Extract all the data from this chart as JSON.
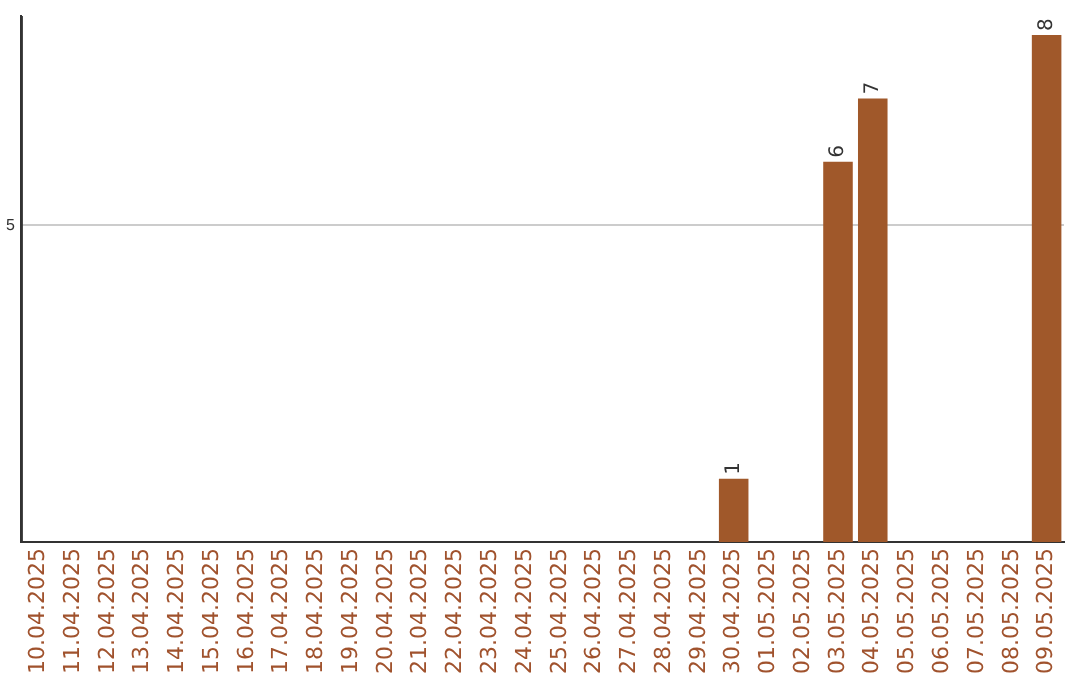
{
  "chart_data": {
    "type": "bar",
    "categories": [
      "10.04.2025",
      "11.04.2025",
      "12.04.2025",
      "13.04.2025",
      "14.04.2025",
      "15.04.2025",
      "16.04.2025",
      "17.04.2025",
      "18.04.2025",
      "19.04.2025",
      "20.04.2025",
      "21.04.2025",
      "22.04.2025",
      "23.04.2025",
      "24.04.2025",
      "25.04.2025",
      "26.04.2025",
      "27.04.2025",
      "28.04.2025",
      "29.04.2025",
      "30.04.2025",
      "01.05.2025",
      "02.05.2025",
      "03.05.2025",
      "04.05.2025",
      "05.05.2025",
      "06.05.2025",
      "07.05.2025",
      "08.05.2025",
      "09.05.2025"
    ],
    "values": [
      null,
      null,
      null,
      null,
      null,
      null,
      null,
      null,
      null,
      null,
      null,
      null,
      null,
      null,
      null,
      null,
      null,
      null,
      null,
      null,
      1,
      null,
      null,
      6,
      7,
      null,
      null,
      null,
      null,
      8
    ],
    "data_labels": true,
    "color": "#a0582a",
    "ylim": [
      0,
      8.3
    ],
    "yticks": [
      5
    ],
    "grid": "y",
    "legend": false
  }
}
